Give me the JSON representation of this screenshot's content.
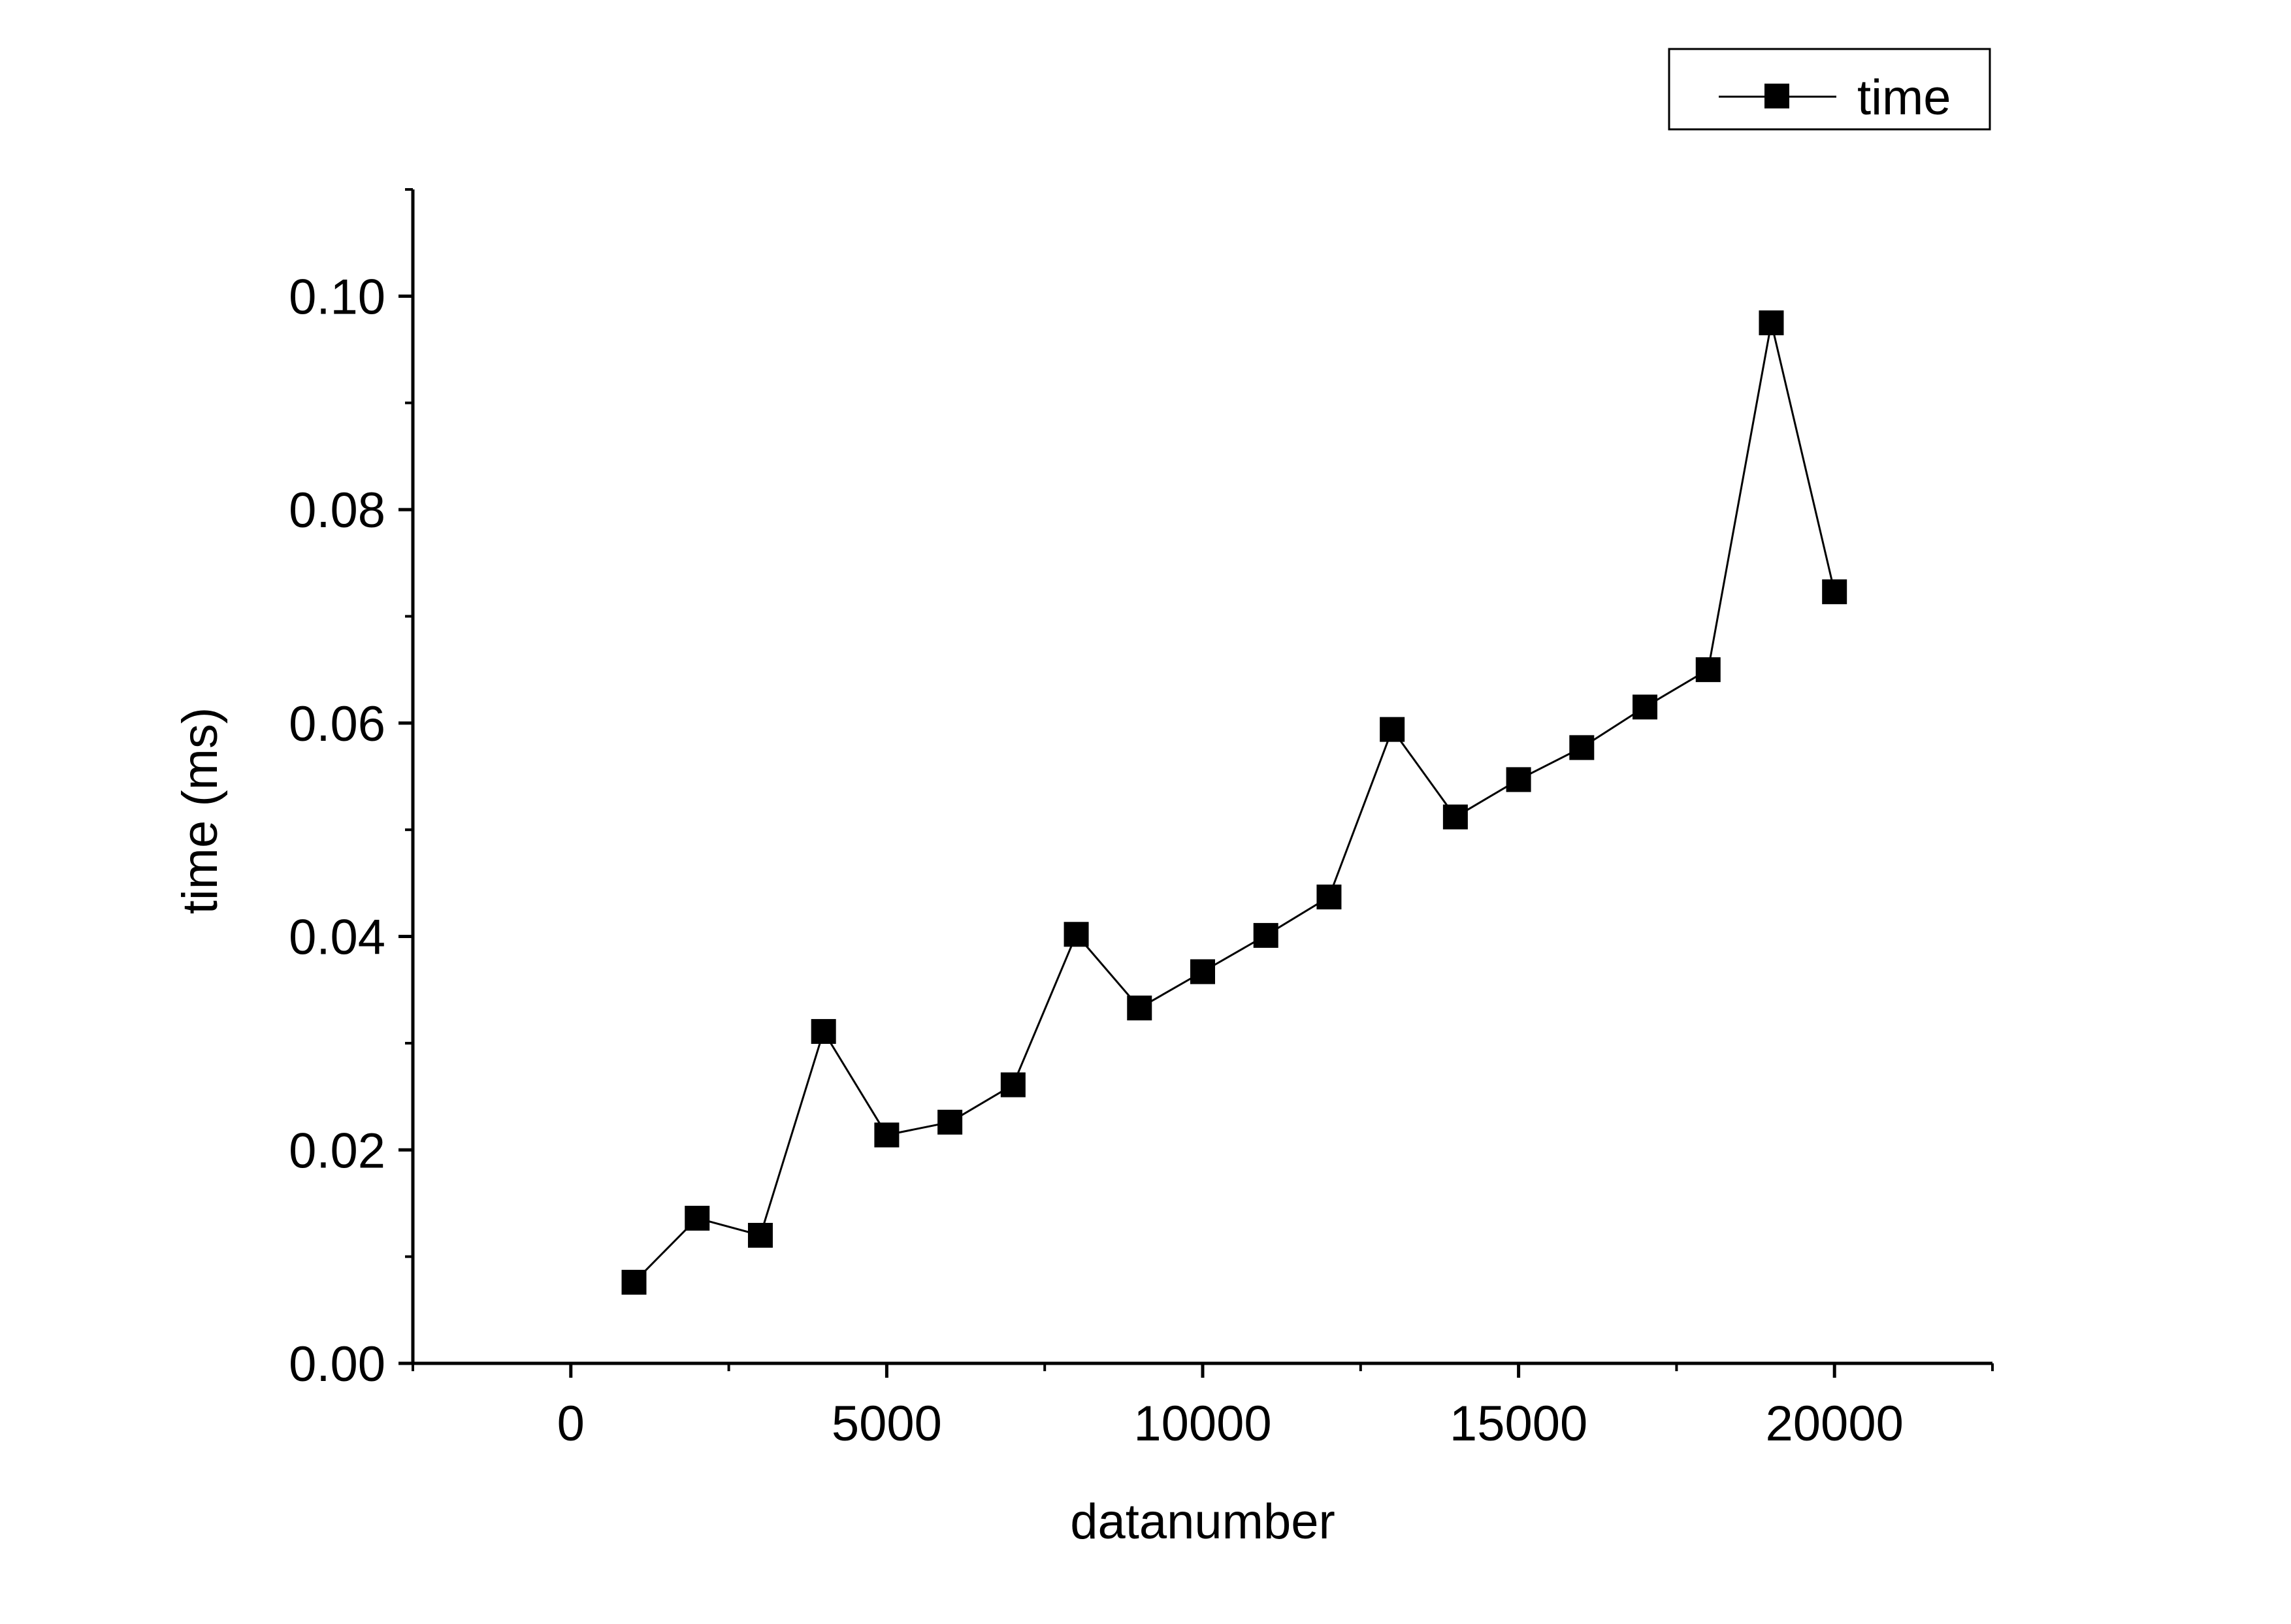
{
  "chart_data": {
    "type": "line",
    "title": "",
    "xlabel": "datanumber",
    "ylabel": "time (ms)",
    "xlim": [
      -2500,
      22500
    ],
    "ylim": [
      0,
      0.11
    ],
    "x_ticks": [
      0,
      5000,
      10000,
      15000,
      20000
    ],
    "x_tick_labels": [
      "0",
      "5000",
      "10000",
      "15000",
      "20000"
    ],
    "x_minor_ticks": [
      -2500,
      2500,
      7500,
      12500,
      17500,
      22500
    ],
    "y_ticks": [
      0.0,
      0.02,
      0.04,
      0.06,
      0.08,
      0.1
    ],
    "y_tick_labels": [
      "0.00",
      "0.02",
      "0.04",
      "0.06",
      "0.08",
      "0.10"
    ],
    "y_minor_ticks": [
      0.01,
      0.03,
      0.05,
      0.07,
      0.09,
      0.11
    ],
    "grid": false,
    "legend_position": "top-right",
    "marker": "square",
    "line_color": "#000000",
    "series": [
      {
        "name": "time",
        "x": [
          1000,
          2000,
          3000,
          4000,
          5000,
          6000,
          7000,
          8000,
          9000,
          10000,
          11000,
          12000,
          13000,
          14000,
          15000,
          16000,
          17000,
          18000,
          19000,
          20000
        ],
        "values": [
          0.0076,
          0.0136,
          0.012,
          0.0311,
          0.0214,
          0.0226,
          0.0261,
          0.0402,
          0.0333,
          0.0367,
          0.0401,
          0.0437,
          0.0594,
          0.0512,
          0.0547,
          0.0577,
          0.0615,
          0.065,
          0.0975,
          0.0723
        ]
      }
    ]
  }
}
